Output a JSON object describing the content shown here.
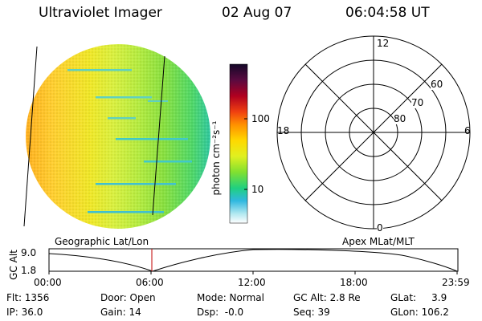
{
  "header": {
    "instrument": "Ultraviolet Imager",
    "date": "02 Aug 07",
    "time": "06:04:58 UT"
  },
  "image_panel": {
    "description_icon": "uv-aurora-disk-image"
  },
  "colorbar": {
    "label": "photon cm⁻²s⁻¹",
    "ticks": [
      "100",
      "10"
    ],
    "colors": [
      "#1a0830",
      "#5a0a3a",
      "#a00020",
      "#e03010",
      "#ff8c00",
      "#ffd700",
      "#e8f020",
      "#80e020",
      "#20d080",
      "#30b8d8",
      "#a0e8f0",
      "#ffffff"
    ]
  },
  "polar_plot": {
    "labels": {
      "mlt_top": "12",
      "mlt_left": "18",
      "mlt_right": "6",
      "mlt_bottom": "0",
      "lat_60": "60",
      "lat_70": "70",
      "lat_80": "80"
    }
  },
  "orbit": {
    "left_label": "Geographic Lat/Lon",
    "right_label": "Apex MLat/MLT",
    "y_axis_label": "GC Alt",
    "y_ticks": [
      "9.0",
      "1.8"
    ],
    "x_ticks": [
      "00:00",
      "06:00",
      "12:00",
      "18:00",
      "23:59"
    ]
  },
  "status": {
    "flt": "Flt: 1356",
    "ip": "IP: 36.0",
    "door": "Door: Open",
    "gain": "Gain: 14",
    "mode": "Mode: Normal",
    "dsp": "Dsp:  -0.0",
    "gc_alt": "GC Alt: 2.8 Re",
    "seq": "Seq: 39",
    "glat": "GLat:     3.9",
    "glon": "GLon: 106.2"
  }
}
